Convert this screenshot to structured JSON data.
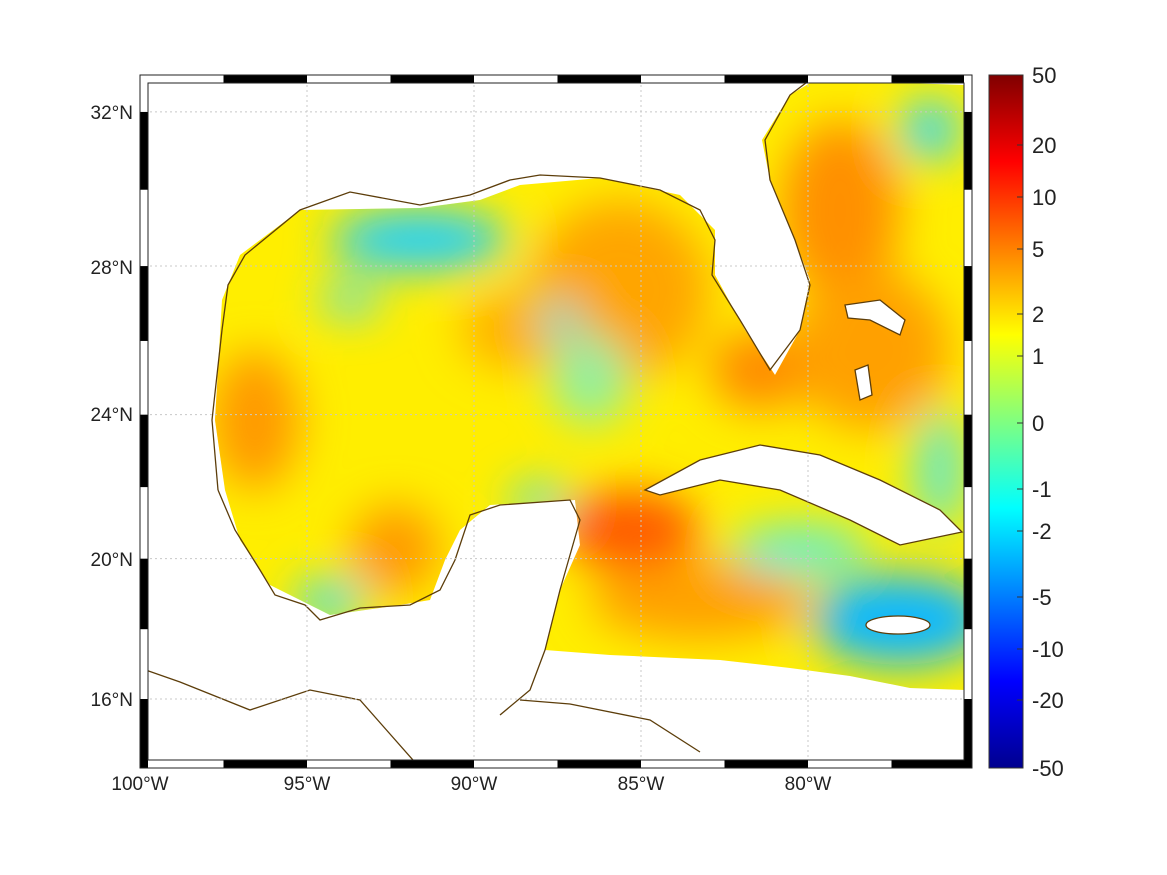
{
  "map": {
    "lon_ticks": [
      {
        "lon": -100,
        "label": "100°W"
      },
      {
        "lon": -95,
        "label": "95°W"
      },
      {
        "lon": -90,
        "label": "90°W"
      },
      {
        "lon": -85,
        "label": "85°W"
      },
      {
        "lon": -80,
        "label": "80°W"
      }
    ],
    "lat_ticks": [
      {
        "lat": 32,
        "label": "32°N"
      },
      {
        "lat": 28,
        "label": "28°N"
      },
      {
        "lat": 24,
        "label": "24°N"
      },
      {
        "lat": 20,
        "label": "20°N"
      },
      {
        "lat": 16,
        "label": "16°N"
      }
    ],
    "lon_range": [
      -100,
      -75
    ],
    "lat_range": [
      14.2,
      33
    ],
    "coastline_color": "#5c3d0a",
    "grid": true
  },
  "colorbar": {
    "ticks": [
      "50",
      "20",
      "10",
      "5",
      "2",
      "1",
      "0",
      "-1",
      "-2",
      "-5",
      "-10",
      "-20",
      "-50"
    ],
    "colors": [
      "#00008f",
      "#0000ff",
      "#0080ff",
      "#00ffff",
      "#80ff80",
      "#ffff00",
      "#ff8000",
      "#ff0000",
      "#800000"
    ]
  }
}
